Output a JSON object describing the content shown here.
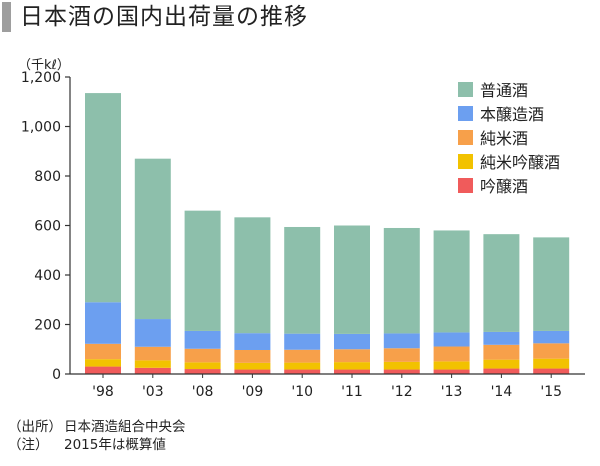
{
  "title": "日本酒の国内出荷量の推移",
  "unit": "（千kℓ）",
  "chart_data": {
    "type": "bar",
    "stacked": true,
    "title": "日本酒の国内出荷量の推移",
    "ylabel": "（千kℓ）",
    "xlabel": "",
    "ylim": [
      0,
      1200
    ],
    "yticks": [
      "0",
      "200",
      "400",
      "600",
      "800",
      "1,000",
      "1,200"
    ],
    "ytick_values": [
      0,
      200,
      400,
      600,
      800,
      1000,
      1200
    ],
    "categories": [
      "'98",
      "'03",
      "'08",
      "'09",
      "'10",
      "'11",
      "'12",
      "'13",
      "'14",
      "'15"
    ],
    "series": [
      {
        "name": "吟醸酒",
        "color": "#f05b5b",
        "values": [
          30,
          25,
          20,
          18,
          18,
          18,
          18,
          18,
          22,
          22
        ]
      },
      {
        "name": "純米吟醸酒",
        "color": "#f2c200",
        "values": [
          30,
          30,
          27,
          27,
          28,
          30,
          31,
          33,
          36,
          40
        ]
      },
      {
        "name": "純米酒",
        "color": "#f7a04a",
        "values": [
          62,
          55,
          55,
          52,
          52,
          52,
          55,
          60,
          60,
          62
        ]
      },
      {
        "name": "本醸造酒",
        "color": "#6c9ff0",
        "values": [
          168,
          112,
          72,
          68,
          65,
          62,
          60,
          57,
          52,
          50
        ]
      },
      {
        "name": "普通酒",
        "color": "#8dbfab",
        "values": [
          845,
          648,
          486,
          468,
          431,
          438,
          426,
          412,
          395,
          378
        ]
      }
    ],
    "legend_order": [
      "普通酒",
      "本醸造酒",
      "純米酒",
      "純米吟醸酒",
      "吟醸酒"
    ],
    "legend_position": "top-right",
    "grid": false
  },
  "notes": [
    {
      "key": "（出所）",
      "text": "日本酒造組合中央会"
    },
    {
      "key": "（注）",
      "text": "2015年は概算値"
    }
  ]
}
